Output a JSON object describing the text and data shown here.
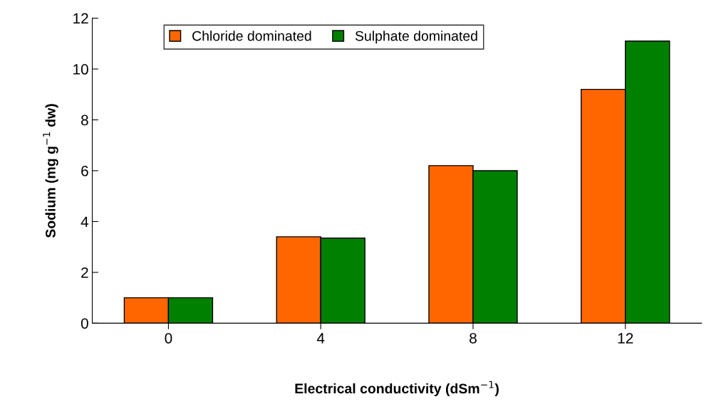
{
  "chart_data": {
    "type": "bar",
    "xlabel": "Electrical conductivity (dSm$^{−1}$)",
    "ylabel": "Sodium (mg g$^{−1}$ dw)",
    "categories": [
      "0",
      "4",
      "8",
      "12"
    ],
    "series": [
      {
        "name": "Chloride dominated",
        "color": "#ff6600",
        "values": [
          1.0,
          3.4,
          6.2,
          9.2
        ]
      },
      {
        "name": "Sulphate dominated",
        "color": "#008000",
        "values": [
          1.0,
          3.35,
          6.0,
          11.1
        ]
      }
    ],
    "ylim": [
      0,
      12
    ],
    "yticks": [
      0,
      2,
      4,
      6,
      8,
      10,
      12
    ],
    "grid": false,
    "legend": "top"
  }
}
